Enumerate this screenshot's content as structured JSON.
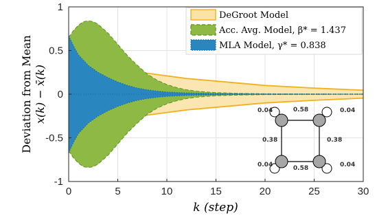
{
  "chart_data": {
    "type": "area",
    "xlabel": "k (step)",
    "ylabel_line1": "Deviation from Mean",
    "ylabel_line2": "x(k) − x̄(k)",
    "xlim": [
      0,
      30
    ],
    "ylim": [
      -1,
      1
    ],
    "xticks": [
      "0",
      "5",
      "10",
      "15",
      "20",
      "25",
      "30"
    ],
    "yticks": [
      "-1",
      "-0.5",
      "0",
      "0.5",
      "1"
    ],
    "grid": true,
    "legend_position": "top-right",
    "series": [
      {
        "name": "DeGroot Model",
        "fill": "#fbe3a8",
        "edge": "#f0b020",
        "line_style": "solid",
        "envelope": {
          "x": [
            0,
            2,
            5,
            8,
            10,
            12,
            15,
            20,
            25,
            30
          ],
          "upper": [
            0.37,
            0.34,
            0.28,
            0.24,
            0.21,
            0.18,
            0.15,
            0.1,
            0.07,
            0.045
          ],
          "lower": [
            -0.37,
            -0.34,
            -0.28,
            -0.24,
            -0.21,
            -0.18,
            -0.15,
            -0.1,
            -0.07,
            -0.045
          ]
        }
      },
      {
        "name": "Acc. Avg. Model, β* = 1.437",
        "fill": "#8db944",
        "edge": "#6a9a2a",
        "line_style": "dashed",
        "envelope": {
          "x": [
            0,
            0.5,
            1,
            1.5,
            2,
            2.5,
            3,
            4,
            5,
            6,
            7,
            8,
            9,
            10,
            11,
            12,
            13,
            14,
            15,
            17,
            20,
            25,
            30
          ],
          "upper": [
            0.65,
            0.73,
            0.79,
            0.83,
            0.84,
            0.83,
            0.8,
            0.7,
            0.57,
            0.44,
            0.33,
            0.23,
            0.16,
            0.11,
            0.075,
            0.05,
            0.035,
            0.025,
            0.018,
            0.01,
            0.004,
            0.002,
            0.001
          ],
          "lower": [
            -0.65,
            -0.73,
            -0.79,
            -0.83,
            -0.84,
            -0.83,
            -0.8,
            -0.7,
            -0.57,
            -0.44,
            -0.33,
            -0.23,
            -0.16,
            -0.11,
            -0.075,
            -0.05,
            -0.035,
            -0.025,
            -0.018,
            -0.01,
            -0.004,
            -0.002,
            -0.001
          ]
        }
      },
      {
        "name": "MLA Model, γ* = 0.838",
        "fill": "#2a86bf",
        "edge": "#1a70a8",
        "line_style": "dotted",
        "envelope": {
          "x": [
            0,
            0.5,
            1,
            2,
            3,
            4,
            5,
            6,
            7,
            8,
            9,
            10,
            12,
            15,
            20,
            25,
            30
          ],
          "upper": [
            0.67,
            0.55,
            0.45,
            0.33,
            0.25,
            0.19,
            0.14,
            0.1,
            0.07,
            0.05,
            0.035,
            0.025,
            0.014,
            0.007,
            0.003,
            0.002,
            0.001
          ],
          "lower": [
            -0.67,
            -0.55,
            -0.45,
            -0.33,
            -0.25,
            -0.19,
            -0.14,
            -0.1,
            -0.07,
            -0.05,
            -0.035,
            -0.025,
            -0.014,
            -0.007,
            -0.003,
            -0.002,
            -0.001
          ]
        }
      }
    ],
    "inset_graph": {
      "self_loop_weights": [
        "0.04",
        "0.04",
        "0.04",
        "0.04"
      ],
      "horizontal_edge_weights": [
        "0.58",
        "0.58"
      ],
      "vertical_edge_weights": [
        "0.38",
        "0.38"
      ],
      "node_fill": "#a6a6a6"
    }
  }
}
